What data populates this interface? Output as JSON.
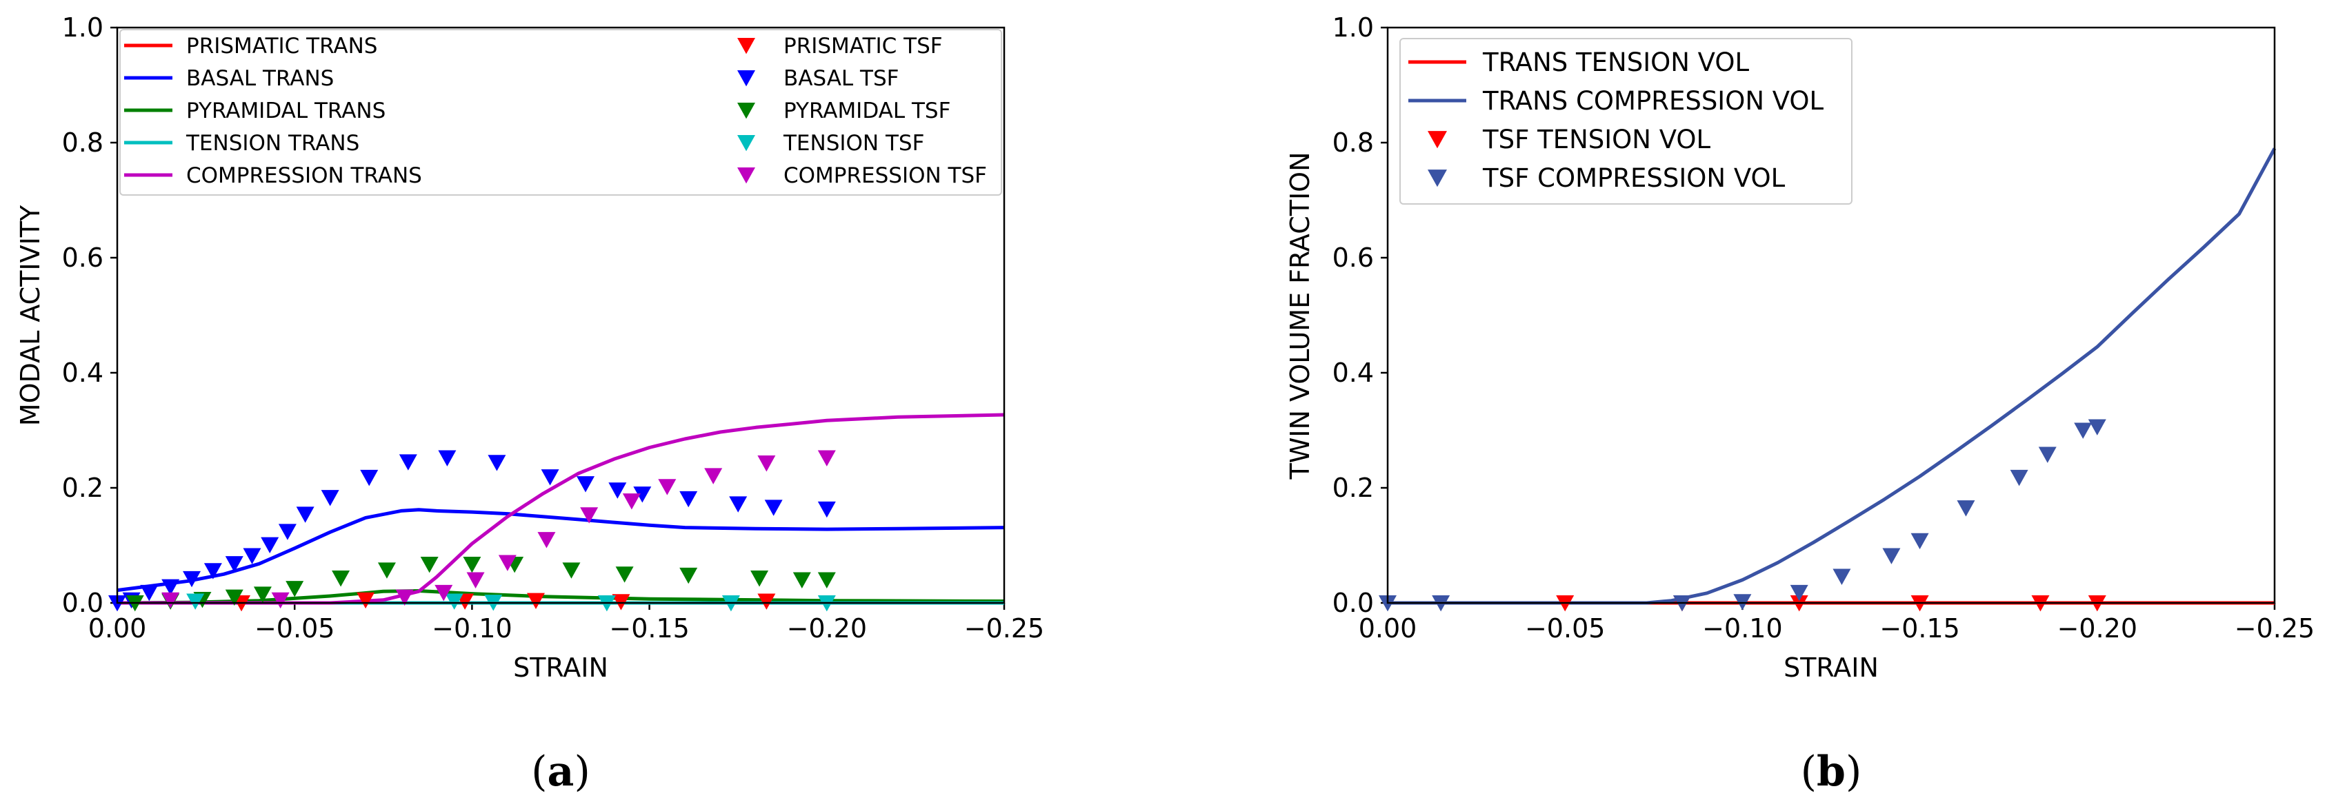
{
  "captions": {
    "a_open": "(",
    "a_letter": "a",
    "a_close": ")",
    "b_open": "(",
    "b_letter": "b",
    "b_close": ")"
  },
  "chart_data": [
    {
      "id": "a",
      "type": "line+scatter",
      "title": "",
      "xlabel": "STRAIN",
      "ylabel": "MODAL ACTIVITY",
      "xlim": [
        0.0,
        -0.25
      ],
      "ylim": [
        0.0,
        1.0
      ],
      "xticks": [
        0.0,
        -0.05,
        -0.1,
        -0.15,
        -0.2,
        -0.25
      ],
      "xtick_labels": [
        "0.00",
        "−0.05",
        "−0.10",
        "−0.15",
        "−0.20",
        "−0.25"
      ],
      "yticks": [
        0.0,
        0.2,
        0.4,
        0.6,
        0.8,
        1.0
      ],
      "ytick_labels": [
        "0.0",
        "0.2",
        "0.4",
        "0.6",
        "0.8",
        "1.0"
      ],
      "legend_position": "top, full width, two columns",
      "colors": {
        "prismatic": "#ff0000",
        "basal": "#0000ff",
        "pyramidal": "#008000",
        "tension": "#00bfbf",
        "compression": "#bf00bf"
      },
      "lines": [
        {
          "name": "PRISMATIC TRANS",
          "color": "#ff0000",
          "x": [
            0,
            -0.02,
            -0.04,
            -0.06,
            -0.08,
            -0.1,
            -0.12,
            -0.15,
            -0.2,
            -0.25
          ],
          "y": [
            0,
            0,
            0,
            0,
            0,
            0,
            0,
            0,
            0,
            0
          ]
        },
        {
          "name": "BASAL TRANS",
          "color": "#0000ff",
          "x": [
            0,
            -0.01,
            -0.02,
            -0.03,
            -0.04,
            -0.05,
            -0.06,
            -0.07,
            -0.08,
            -0.085,
            -0.09,
            -0.1,
            -0.11,
            -0.12,
            -0.13,
            -0.14,
            -0.15,
            -0.16,
            -0.18,
            -0.2,
            -0.22,
            -0.25
          ],
          "y": [
            0.022,
            0.03,
            0.038,
            0.05,
            0.068,
            0.095,
            0.123,
            0.148,
            0.16,
            0.162,
            0.16,
            0.158,
            0.155,
            0.15,
            0.145,
            0.14,
            0.135,
            0.131,
            0.129,
            0.128,
            0.129,
            0.131
          ]
        },
        {
          "name": "PYRAMIDAL TRANS",
          "color": "#008000",
          "x": [
            0,
            -0.02,
            -0.04,
            -0.06,
            -0.075,
            -0.085,
            -0.1,
            -0.12,
            -0.15,
            -0.2,
            -0.25
          ],
          "y": [
            0,
            0.001,
            0.004,
            0.012,
            0.02,
            0.021,
            0.016,
            0.011,
            0.007,
            0.004,
            0.003
          ]
        },
        {
          "name": "TENSION TRANS",
          "color": "#00bfbf",
          "x": [
            0,
            -0.05,
            -0.1,
            -0.15,
            -0.2,
            -0.25
          ],
          "y": [
            0,
            0,
            0,
            0,
            0,
            0
          ]
        },
        {
          "name": "COMPRESSION TRANS",
          "color": "#bf00bf",
          "x": [
            0,
            -0.06,
            -0.075,
            -0.085,
            -0.09,
            -0.1,
            -0.11,
            -0.12,
            -0.13,
            -0.14,
            -0.15,
            -0.16,
            -0.17,
            -0.18,
            -0.2,
            -0.22,
            -0.25
          ],
          "y": [
            0,
            0,
            0.005,
            0.02,
            0.045,
            0.103,
            0.15,
            0.19,
            0.225,
            0.25,
            0.27,
            0.285,
            0.297,
            0.305,
            0.317,
            0.323,
            0.327
          ]
        }
      ],
      "scatter": [
        {
          "name": "PRISMATIC TSF",
          "color": "#ff0000",
          "x": [
            -0.035,
            -0.07,
            -0.098,
            -0.118,
            -0.142,
            -0.183
          ],
          "y": [
            0.0,
            0.005,
            0.003,
            0.004,
            0.002,
            0.003
          ]
        },
        {
          "name": "BASAL TSF",
          "color": "#0000ff",
          "x": [
            0,
            -0.004,
            -0.009,
            -0.015,
            -0.021,
            -0.027,
            -0.033,
            -0.038,
            -0.043,
            -0.048,
            -0.053,
            -0.06,
            -0.071,
            -0.082,
            -0.093,
            -0.107,
            -0.122,
            -0.132,
            -0.141,
            -0.148,
            -0.161,
            -0.175,
            -0.185,
            -0.2
          ],
          "y": [
            0.0,
            0.005,
            0.018,
            0.028,
            0.042,
            0.056,
            0.068,
            0.082,
            0.101,
            0.124,
            0.154,
            0.183,
            0.218,
            0.245,
            0.252,
            0.244,
            0.219,
            0.207,
            0.196,
            0.189,
            0.181,
            0.172,
            0.166,
            0.163
          ]
        },
        {
          "name": "PYRAMIDAL TSF",
          "color": "#008000",
          "x": [
            -0.005,
            -0.015,
            -0.024,
            -0.033,
            -0.041,
            -0.05,
            -0.063,
            -0.076,
            -0.088,
            -0.1,
            -0.112,
            -0.128,
            -0.143,
            -0.161,
            -0.181,
            -0.193,
            -0.2
          ],
          "y": [
            0.0,
            0.003,
            0.006,
            0.01,
            0.015,
            0.025,
            0.043,
            0.057,
            0.067,
            0.067,
            0.067,
            0.057,
            0.05,
            0.048,
            0.043,
            0.04,
            0.04
          ]
        },
        {
          "name": "TENSION TSF",
          "color": "#00bfbf",
          "x": [
            -0.022,
            -0.095,
            -0.106,
            -0.138,
            -0.173,
            -0.2
          ],
          "y": [
            0.003,
            0.003,
            0.001,
            0.0,
            0.0,
            0.0
          ]
        },
        {
          "name": "COMPRESSION TSF",
          "color": "#bf00bf",
          "x": [
            -0.015,
            -0.046,
            -0.081,
            -0.092,
            -0.101,
            -0.11,
            -0.121,
            -0.133,
            -0.145,
            -0.155,
            -0.168,
            -0.183,
            -0.2
          ],
          "y": [
            0.005,
            0.005,
            0.01,
            0.018,
            0.04,
            0.07,
            0.11,
            0.153,
            0.177,
            0.202,
            0.221,
            0.243,
            0.252
          ]
        }
      ]
    },
    {
      "id": "b",
      "type": "line+scatter",
      "title": "",
      "xlabel": "STRAIN",
      "ylabel": "TWIN VOLUME FRACTION",
      "xlim": [
        0.0,
        -0.25
      ],
      "ylim": [
        0.0,
        1.0
      ],
      "xticks": [
        0.0,
        -0.05,
        -0.1,
        -0.15,
        -0.2,
        -0.25
      ],
      "xtick_labels": [
        "0.00",
        "−0.05",
        "−0.10",
        "−0.15",
        "−0.20",
        "−0.25"
      ],
      "yticks": [
        0.0,
        0.2,
        0.4,
        0.6,
        0.8,
        1.0
      ],
      "ytick_labels": [
        "0.0",
        "0.2",
        "0.4",
        "0.6",
        "0.8",
        "1.0"
      ],
      "legend_position": "top-left",
      "colors": {
        "tension": "#ff0000",
        "compression": "#3a53a4"
      },
      "lines": [
        {
          "name": "TRANS TENSION VOL",
          "color": "#ff0000",
          "x": [
            0,
            -0.05,
            -0.1,
            -0.15,
            -0.2,
            -0.25
          ],
          "y": [
            0,
            0,
            0,
            0,
            0,
            0
          ]
        },
        {
          "name": "TRANS COMPRESSION VOL",
          "color": "#3a53a4",
          "x": [
            0,
            -0.073,
            -0.08,
            -0.09,
            -0.1,
            -0.11,
            -0.12,
            -0.13,
            -0.14,
            -0.15,
            -0.16,
            -0.17,
            -0.18,
            -0.19,
            -0.2,
            -0.21,
            -0.22,
            -0.23,
            -0.24,
            -0.25
          ],
          "y": [
            0,
            0,
            0.004,
            0.017,
            0.04,
            0.07,
            0.105,
            0.142,
            0.18,
            0.22,
            0.263,
            0.307,
            0.352,
            0.398,
            0.445,
            0.504,
            0.562,
            0.618,
            0.676,
            0.79
          ]
        }
      ],
      "scatter": [
        {
          "name": "TSF TENSION VOL",
          "color": "#ff0000",
          "x": [
            -0.05,
            -0.083,
            -0.116,
            -0.15,
            -0.184,
            -0.2
          ],
          "y": [
            0,
            0,
            0,
            0,
            0,
            0
          ]
        },
        {
          "name": "TSF COMPRESSION VOL",
          "color": "#3a53a4",
          "x": [
            0,
            -0.015,
            -0.083,
            -0.1,
            -0.116,
            -0.128,
            -0.142,
            -0.15,
            -0.163,
            -0.178,
            -0.186,
            -0.196,
            -0.2
          ],
          "y": [
            0.0,
            0.0,
            0.0,
            0.002,
            0.018,
            0.046,
            0.082,
            0.108,
            0.165,
            0.218,
            0.258,
            0.3,
            0.306
          ]
        }
      ]
    }
  ]
}
